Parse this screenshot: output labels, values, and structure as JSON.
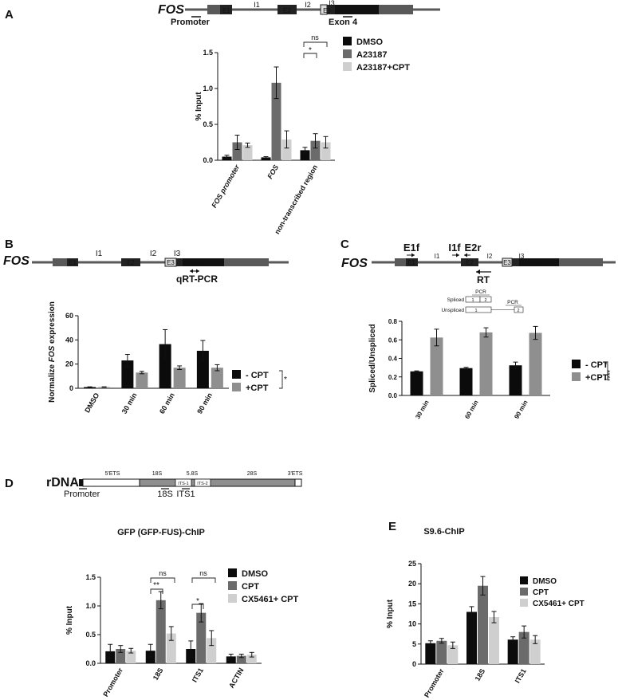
{
  "colors": {
    "black": "#0b0b0b",
    "dark_grey": "#6b6b6b",
    "mid_grey": "#8f8f8f",
    "light_grey": "#cfcfcf",
    "gene_bar": "#595959",
    "exon_dark": "#222222"
  },
  "panels": {
    "A": {
      "label": "A",
      "gene": "FOS",
      "exons": [
        "E1",
        "E2",
        "E3",
        "E4"
      ],
      "introns": [
        "I1",
        "I2",
        "I3"
      ],
      "markers": [
        "Promoter",
        "Exon 4"
      ],
      "sig": [
        "ns",
        "*"
      ]
    },
    "B": {
      "label": "B",
      "gene": "FOS",
      "exons": [
        "E1",
        "E2",
        "E3",
        "E4"
      ],
      "introns": [
        "I1",
        "I2",
        "I3"
      ],
      "primer": "qRT-PCR",
      "sig": [
        "*"
      ]
    },
    "C": {
      "label": "C",
      "gene": "FOS",
      "exons": [
        "E1",
        "E2",
        "E3",
        "E4"
      ],
      "introns": [
        "I1",
        "I2",
        "I3"
      ],
      "primers": [
        "E1f",
        "I1f",
        "E2r",
        "RT"
      ],
      "schematic": {
        "spliced": "Spliced",
        "unspliced": "Unspliced",
        "pcr": "PCR",
        "n1": "1",
        "n2": "2"
      },
      "sig": [
        "****"
      ]
    },
    "D": {
      "label": "D",
      "gene": "rDNA",
      "regions": [
        "5'ETS",
        "18S",
        "5.8S",
        "28S",
        "3'ETS",
        "ITS-1",
        "ITS-2"
      ],
      "markers": [
        "Promoter",
        "18S",
        "ITS1"
      ],
      "sig": [
        "ns",
        "**",
        "ns",
        "*"
      ]
    },
    "E": {
      "label": "E"
    }
  },
  "chart_data": [
    {
      "id": "A",
      "type": "bar",
      "title": "",
      "xlabel": "",
      "ylabel": "% Input",
      "ylim": [
        0,
        1.5
      ],
      "yticks": [
        0.0,
        0.5,
        1.0,
        1.5
      ],
      "ytick_labels": [
        "0.0",
        "0.5",
        "1.0",
        "1.5"
      ],
      "categories": [
        "FOS promoter",
        "FOS",
        "non-transcribed region"
      ],
      "series": [
        {
          "name": "DMSO",
          "color": "#0b0b0b",
          "values": [
            0.05,
            0.04,
            0.14
          ],
          "errors": [
            0.02,
            0.01,
            0.04
          ]
        },
        {
          "name": "A23187",
          "color": "#6b6b6b",
          "values": [
            0.25,
            1.08,
            0.27
          ],
          "errors": [
            0.1,
            0.22,
            0.1
          ]
        },
        {
          "name": "A23187+CPT",
          "color": "#cfcfcf",
          "values": [
            0.21,
            0.29,
            0.25
          ],
          "errors": [
            0.03,
            0.12,
            0.08
          ]
        }
      ],
      "legend": "top-right",
      "grid": false
    },
    {
      "id": "B",
      "type": "bar",
      "title": "",
      "xlabel": "",
      "ylabel": "Normalize FOS expression",
      "ylim": [
        0,
        60
      ],
      "yticks": [
        0,
        20,
        40,
        60
      ],
      "ytick_labels": [
        "0",
        "20",
        "40",
        "60"
      ],
      "categories": [
        "DMSO",
        "30 min",
        "60 min",
        "90 min"
      ],
      "series": [
        {
          "name": "- CPT",
          "color": "#0b0b0b",
          "values": [
            1,
            23,
            36.5,
            31
          ],
          "errors": [
            0.2,
            5,
            12,
            8.5
          ]
        },
        {
          "name": "+CPT",
          "color": "#8f8f8f",
          "values": [
            1,
            13,
            17,
            17
          ],
          "errors": [
            0.2,
            1,
            1.5,
            2.5
          ]
        }
      ],
      "legend": "right",
      "grid": false
    },
    {
      "id": "C",
      "type": "bar",
      "title": "",
      "xlabel": "",
      "ylabel": "Spliced/Unspliced",
      "ylim": [
        0,
        0.8
      ],
      "yticks": [
        0.0,
        0.2,
        0.4,
        0.6,
        0.8
      ],
      "ytick_labels": [
        "0.0",
        "0.2",
        "0.4",
        "0.6",
        "0.8"
      ],
      "categories": [
        "30 min",
        "60 min",
        "90 min"
      ],
      "series": [
        {
          "name": "- CPT",
          "color": "#0b0b0b",
          "values": [
            0.26,
            0.295,
            0.325
          ],
          "errors": [
            0.005,
            0.008,
            0.035
          ]
        },
        {
          "name": "+CPT",
          "color": "#8f8f8f",
          "values": [
            0.625,
            0.68,
            0.675
          ],
          "errors": [
            0.09,
            0.05,
            0.07
          ]
        }
      ],
      "legend": "right",
      "grid": false
    },
    {
      "id": "D",
      "type": "bar",
      "title": "GFP (GFP-FUS)-ChIP",
      "xlabel": "",
      "ylabel": "% Input",
      "ylim": [
        0,
        1.5
      ],
      "yticks": [
        0.0,
        0.5,
        1.0,
        1.5
      ],
      "ytick_labels": [
        "0.0",
        "0.5",
        "1.0",
        "1.5"
      ],
      "categories": [
        "Promoter",
        "18S",
        "ITS1",
        "ACTIN"
      ],
      "series": [
        {
          "name": "DMSO",
          "color": "#0b0b0b",
          "values": [
            0.21,
            0.22,
            0.25,
            0.12
          ],
          "errors": [
            0.12,
            0.11,
            0.14,
            0.04
          ]
        },
        {
          "name": "CPT",
          "color": "#6b6b6b",
          "values": [
            0.25,
            1.1,
            0.88,
            0.13
          ],
          "errors": [
            0.06,
            0.15,
            0.16,
            0.03
          ]
        },
        {
          "name": "CX5461+ CPT",
          "color": "#cfcfcf",
          "values": [
            0.22,
            0.52,
            0.44,
            0.15
          ],
          "errors": [
            0.04,
            0.12,
            0.13,
            0.04
          ]
        }
      ],
      "legend": "top-right",
      "grid": false
    },
    {
      "id": "E",
      "type": "bar",
      "title": "S9.6-ChIP",
      "xlabel": "",
      "ylabel": "% Input",
      "ylim": [
        0,
        25
      ],
      "yticks": [
        0,
        5,
        10,
        15,
        20,
        25
      ],
      "ytick_labels": [
        "0",
        "5",
        "10",
        "15",
        "20",
        "25"
      ],
      "categories": [
        "Promoter",
        "18S",
        "ITS1"
      ],
      "series": [
        {
          "name": "DMSO",
          "color": "#0b0b0b",
          "values": [
            5.2,
            13,
            6.1
          ],
          "errors": [
            0.6,
            1.3,
            0.7
          ]
        },
        {
          "name": "CPT",
          "color": "#6b6b6b",
          "values": [
            5.8,
            19.5,
            8
          ],
          "errors": [
            0.6,
            2.3,
            1.5
          ]
        },
        {
          "name": "CX5461+ CPT",
          "color": "#cfcfcf",
          "values": [
            4.7,
            11.7,
            6.1
          ],
          "errors": [
            0.8,
            1.4,
            1
          ]
        }
      ],
      "legend": "top-right",
      "grid": false
    }
  ]
}
